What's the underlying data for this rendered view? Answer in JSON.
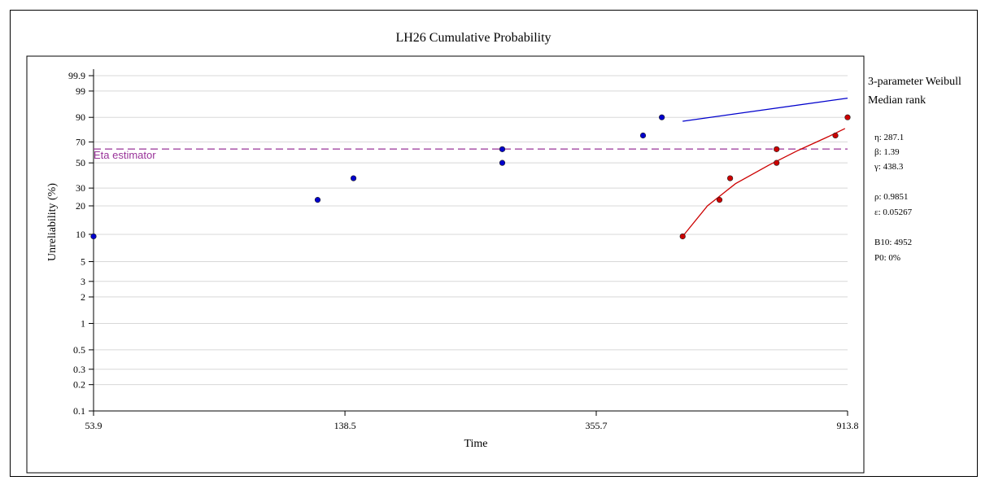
{
  "chart_data": {
    "type": "scatter",
    "title": "LH26 Cumulative Probability",
    "xlabel": "Time",
    "ylabel": "Unreliability (%)",
    "x_scale": "log",
    "y_scale": "weibull",
    "xlim": [
      53.9,
      913.8
    ],
    "ylim": [
      0.1,
      99.9
    ],
    "x_ticks": [
      "53.9",
      "138.5",
      "355.7",
      "913.8"
    ],
    "y_ticks": [
      "0.1",
      "0.2",
      "0.3",
      "0.5",
      "1",
      "2",
      "3",
      "5",
      "10",
      "20",
      "30",
      "50",
      "70",
      "90",
      "99",
      "99.9"
    ],
    "grid": true,
    "series": [
      {
        "color": "#0000cc",
        "points": [
          [
            53.9,
            9.5
          ],
          [
            125,
            23
          ],
          [
            143,
            37
          ],
          [
            250,
            50
          ],
          [
            250,
            63
          ],
          [
            424,
            76
          ],
          [
            455,
            90
          ]
        ]
      },
      {
        "color": "#cc0000",
        "points": [
          [
            492,
            9.5
          ],
          [
            565,
            23
          ],
          [
            588,
            37
          ],
          [
            700,
            50
          ],
          [
            700,
            63
          ],
          [
            873,
            76
          ],
          [
            913.8,
            90
          ]
        ]
      }
    ],
    "fit_curves": [
      {
        "color": "#cc0000",
        "points": [
          [
            492,
            9.5
          ],
          [
            540,
            20
          ],
          [
            600,
            33
          ],
          [
            680,
            48
          ],
          [
            760,
            62
          ],
          [
            850,
            75
          ],
          [
            905,
            82
          ]
        ]
      },
      {
        "color": "#0000cc",
        "points": [
          [
            492,
            87.5
          ],
          [
            913.8,
            97.8
          ]
        ]
      }
    ],
    "reference_line": {
      "label": "Eta estimator",
      "y": 63.2,
      "color": "#993399"
    }
  },
  "legend": {
    "model": "3-parameter Weibull",
    "rank_method": "Median rank"
  },
  "params": [
    {
      "text": "η: 287.1"
    },
    {
      "text": "β: 1.39"
    },
    {
      "text": "γ: 438.3"
    },
    {
      "text": "ρ: 0.9851"
    },
    {
      "text": "ε: 0.05267"
    },
    {
      "text": "B10: 4952"
    },
    {
      "text": "P0: 0%"
    }
  ]
}
